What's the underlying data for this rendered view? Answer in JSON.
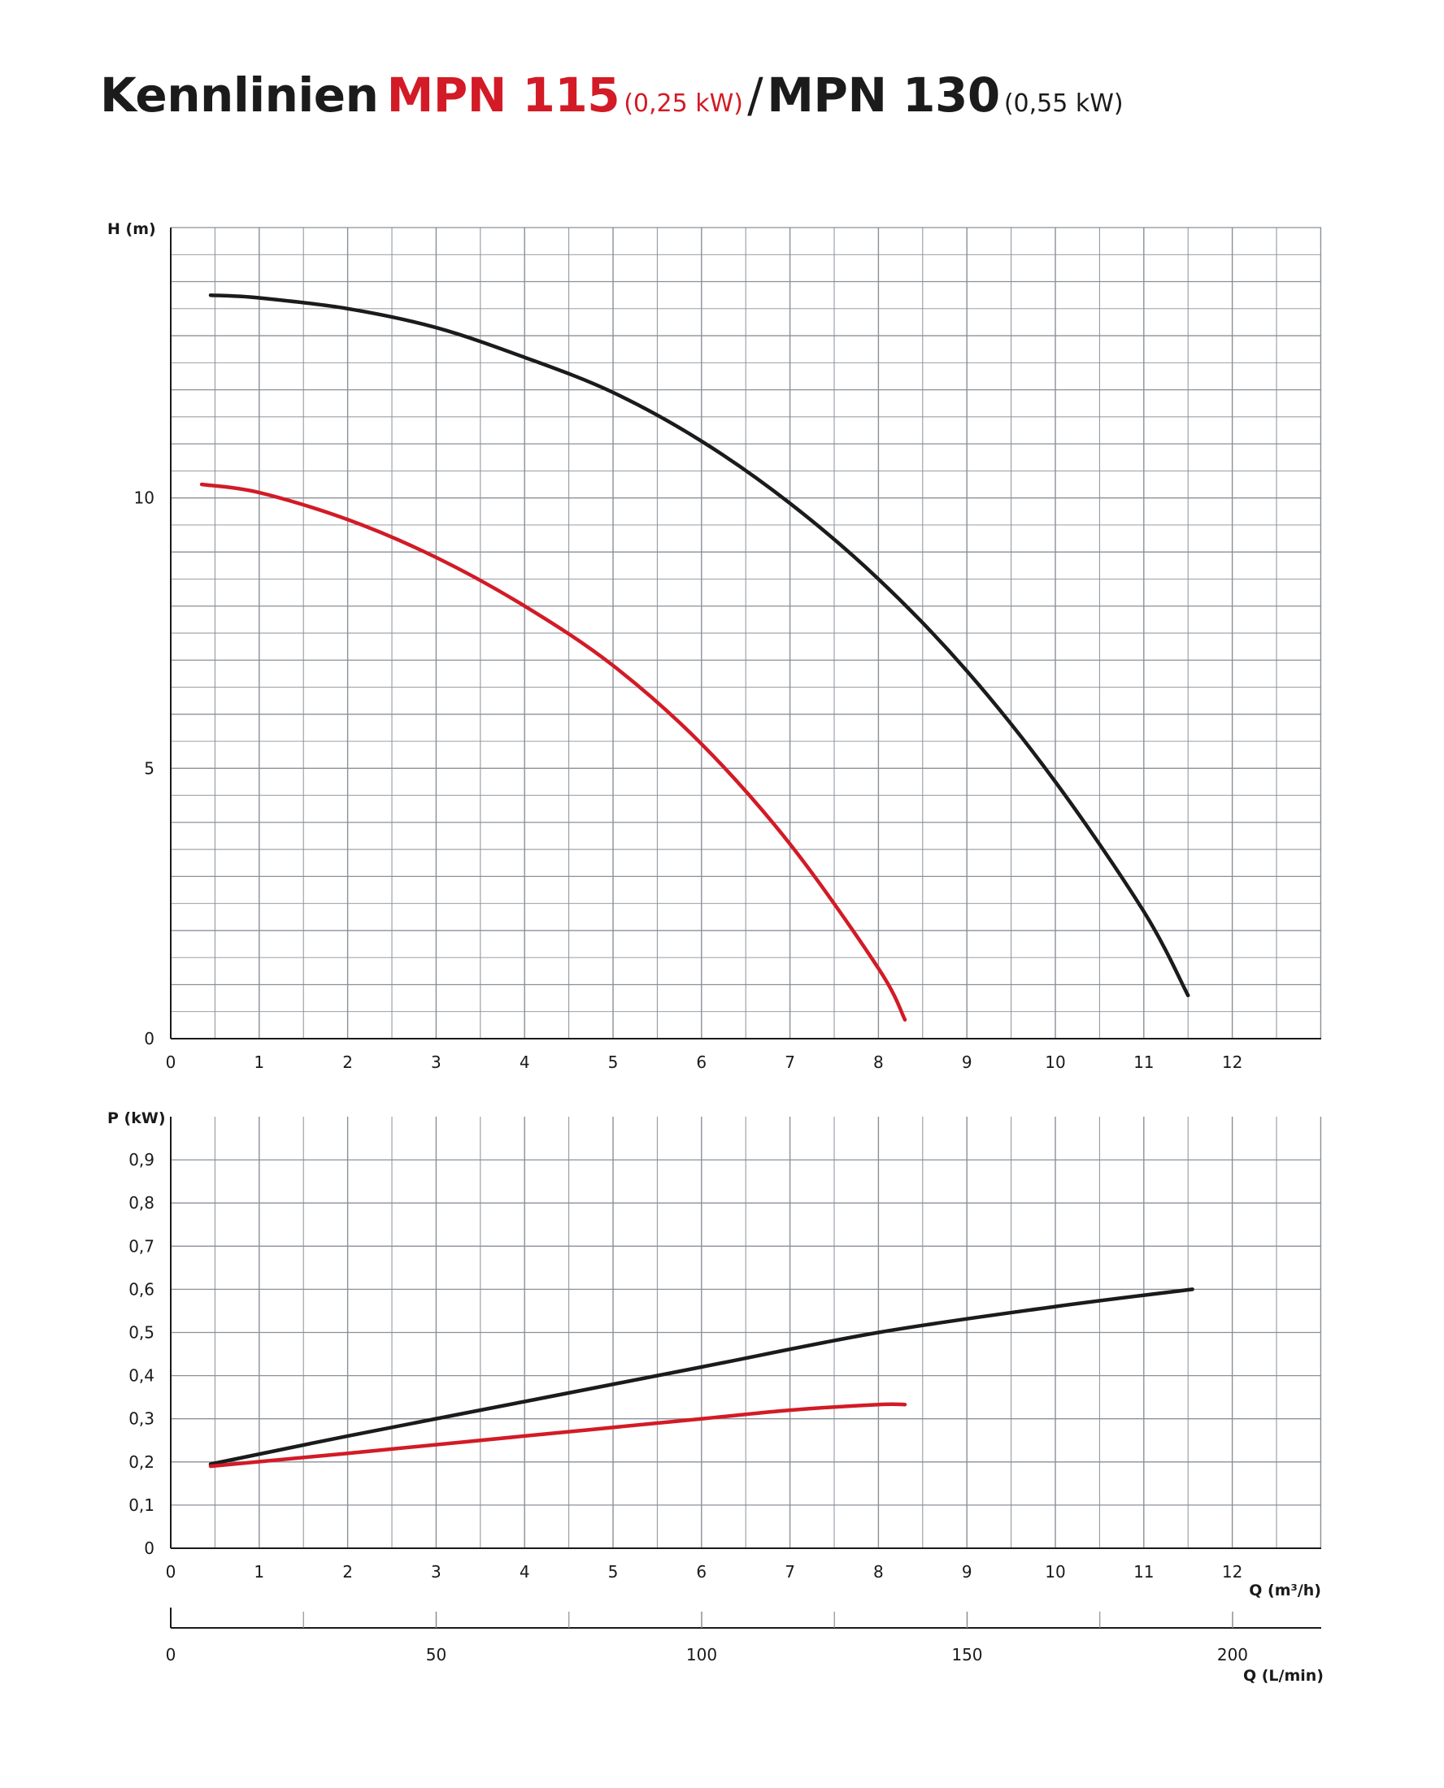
{
  "title": {
    "prefix": "Kennlinien",
    "model1": "MPN 115",
    "power1": "(0,25 kW)",
    "separator": "/",
    "model2": "MPN 130",
    "power2": "(0,55 kW)"
  },
  "colors": {
    "mpn115": "#d21b26",
    "mpn130": "#1b1b1b",
    "grid": "#8a9098",
    "axis": "#1a1a1a"
  },
  "chart_data": [
    {
      "type": "line",
      "ylabel": "H (m)",
      "xlabel": "",
      "xlim": [
        0,
        13
      ],
      "ylim": [
        0,
        15
      ],
      "xticks": [
        0,
        1,
        2,
        3,
        4,
        5,
        6,
        7,
        8,
        9,
        10,
        11,
        12
      ],
      "xtick_labels": [
        "0",
        "1",
        "2",
        "3",
        "4",
        "5",
        "6",
        "7",
        "8",
        "9",
        "10",
        "11",
        "12"
      ],
      "yticks": [
        0,
        5,
        10
      ],
      "ytick_labels": [
        "0",
        "5",
        "10"
      ],
      "grid": true,
      "series": [
        {
          "name": "MPN 130",
          "color": "#1b1b1b",
          "x": [
            0.45,
            1,
            2,
            3,
            4,
            5,
            6,
            7,
            8,
            9,
            10,
            11,
            11.5
          ],
          "y": [
            13.75,
            13.7,
            13.5,
            13.15,
            12.6,
            11.95,
            11.05,
            9.9,
            8.5,
            6.8,
            4.75,
            2.35,
            0.8
          ]
        },
        {
          "name": "MPN 115",
          "color": "#d21b26",
          "x": [
            0.35,
            1,
            2,
            3,
            4,
            5,
            6,
            7,
            8,
            8.3
          ],
          "y": [
            10.25,
            10.1,
            9.6,
            8.9,
            8.0,
            6.9,
            5.45,
            3.6,
            1.3,
            0.35
          ]
        }
      ]
    },
    {
      "type": "line",
      "ylabel": "P (kW)",
      "xlabel": "Q (m³/h)",
      "xlim": [
        0,
        13
      ],
      "ylim": [
        0,
        1.0
      ],
      "xticks": [
        0,
        1,
        2,
        3,
        4,
        5,
        6,
        7,
        8,
        9,
        10,
        11,
        12
      ],
      "xtick_labels": [
        "0",
        "1",
        "2",
        "3",
        "4",
        "5",
        "6",
        "7",
        "8",
        "9",
        "10",
        "11",
        "12"
      ],
      "yticks": [
        0,
        0.1,
        0.2,
        0.3,
        0.4,
        0.5,
        0.6,
        0.7,
        0.8,
        0.9
      ],
      "ytick_labels": [
        "0",
        "0,1",
        "0,2",
        "0,3",
        "0,4",
        "0,5",
        "0,6",
        "0,7",
        "0,8",
        "0,9"
      ],
      "grid": true,
      "series": [
        {
          "name": "MPN 130",
          "color": "#1b1b1b",
          "x": [
            0.45,
            2,
            4,
            6,
            8,
            10,
            11.55
          ],
          "y": [
            0.195,
            0.26,
            0.34,
            0.42,
            0.5,
            0.56,
            0.6
          ]
        },
        {
          "name": "MPN 115",
          "color": "#d21b26",
          "x": [
            0.45,
            2,
            4,
            6,
            7,
            8,
            8.3
          ],
          "y": [
            0.19,
            0.22,
            0.26,
            0.3,
            0.32,
            0.333,
            0.333
          ]
        }
      ]
    }
  ],
  "flow_scale": {
    "label": "Q (L/min)",
    "range": [
      0,
      216.7
    ],
    "major_ticks": [
      0,
      50,
      100,
      150,
      200
    ],
    "major_labels": [
      "0",
      "50",
      "100",
      "150",
      "200"
    ],
    "minor_ticks": [
      25,
      75,
      125,
      175
    ]
  }
}
